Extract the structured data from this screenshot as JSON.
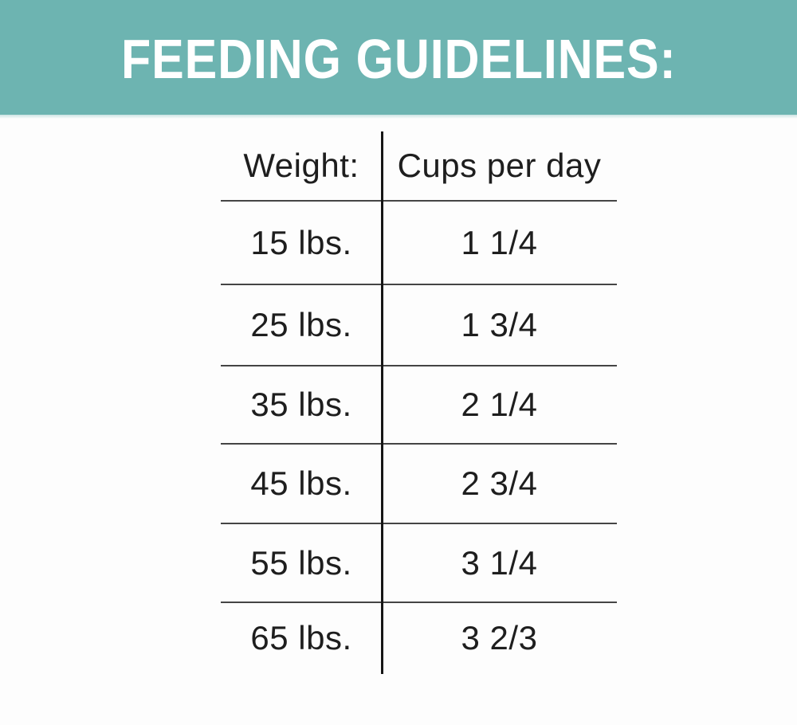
{
  "banner": {
    "title": "FEEDING GUIDELINES:"
  },
  "colors": {
    "banner_teal": "#6db4b1",
    "banner_text": "#ffffff",
    "table_text": "#1e1e1e",
    "horizontal_line": "#454545",
    "vertical_line": "#161616",
    "background": "#fdfdfd"
  },
  "chart_data": {
    "type": "table",
    "title": "FEEDING GUIDELINES:",
    "columns": [
      "Weight:",
      "Cups per day"
    ],
    "rows": [
      {
        "weight": "15 lbs.",
        "cups": "1 1/4"
      },
      {
        "weight": "25 lbs.",
        "cups": "1 3/4"
      },
      {
        "weight": "35 lbs.",
        "cups": "2 1/4"
      },
      {
        "weight": "45 lbs.",
        "cups": "2 3/4"
      },
      {
        "weight": "55 lbs.",
        "cups": "3 1/4"
      },
      {
        "weight": "65 lbs.",
        "cups": "3 2/3"
      }
    ],
    "weights_lbs": [
      15,
      25,
      35,
      45,
      55,
      65
    ],
    "cups_per_day_numeric": [
      1.25,
      1.75,
      2.25,
      2.75,
      3.25,
      3.667
    ]
  }
}
